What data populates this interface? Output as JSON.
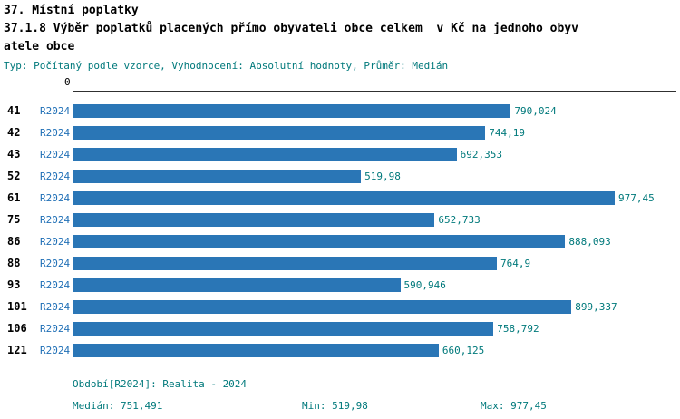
{
  "header": {
    "title": "37. Místní poplatky",
    "subtitle_line1": "37.1.8 Výběr poplatků placených přímo obyvateli obce celkem  v Kč na jednoho obyv",
    "subtitle_line2": "atele obce",
    "meta": "Typ: Počítaný podle vzorce, Vyhodnocení: Absolutní hodnoty, Průměr: Medián"
  },
  "chart_data": {
    "type": "bar",
    "orientation": "horizontal",
    "title": "37.1.8 Výběr poplatků placených přímo obyvateli obce celkem v Kč na jednoho obyvatele obce",
    "categories": [
      "41",
      "42",
      "43",
      "52",
      "61",
      "75",
      "86",
      "88",
      "93",
      "101",
      "106",
      "121"
    ],
    "series": [
      {
        "name": "R2024",
        "values": [
          790.024,
          744.19,
          692.353,
          519.98,
          977.45,
          652.733,
          888.093,
          764.9,
          590.946,
          899.337,
          758.792,
          660.125
        ]
      }
    ],
    "value_labels": [
      "790,024",
      "744,19",
      "692,353",
      "519,98",
      "977,45",
      "652,733",
      "888,093",
      "764,9",
      "590,946",
      "899,337",
      "758,792",
      "660,125"
    ],
    "xmin": 0,
    "xmax": 977.45,
    "zero_tick_label": "0",
    "median": 751.491,
    "grid": false,
    "legend_position": "none",
    "bar_color": "#2a76b6",
    "median_line_color": "#a9c4d9"
  },
  "footer": {
    "period_line": "Období[R2024]: Realita - 2024",
    "median_label": "Medián: 751,491",
    "min_label": "Min: 519,98",
    "max_label": "Max: 977,45"
  }
}
